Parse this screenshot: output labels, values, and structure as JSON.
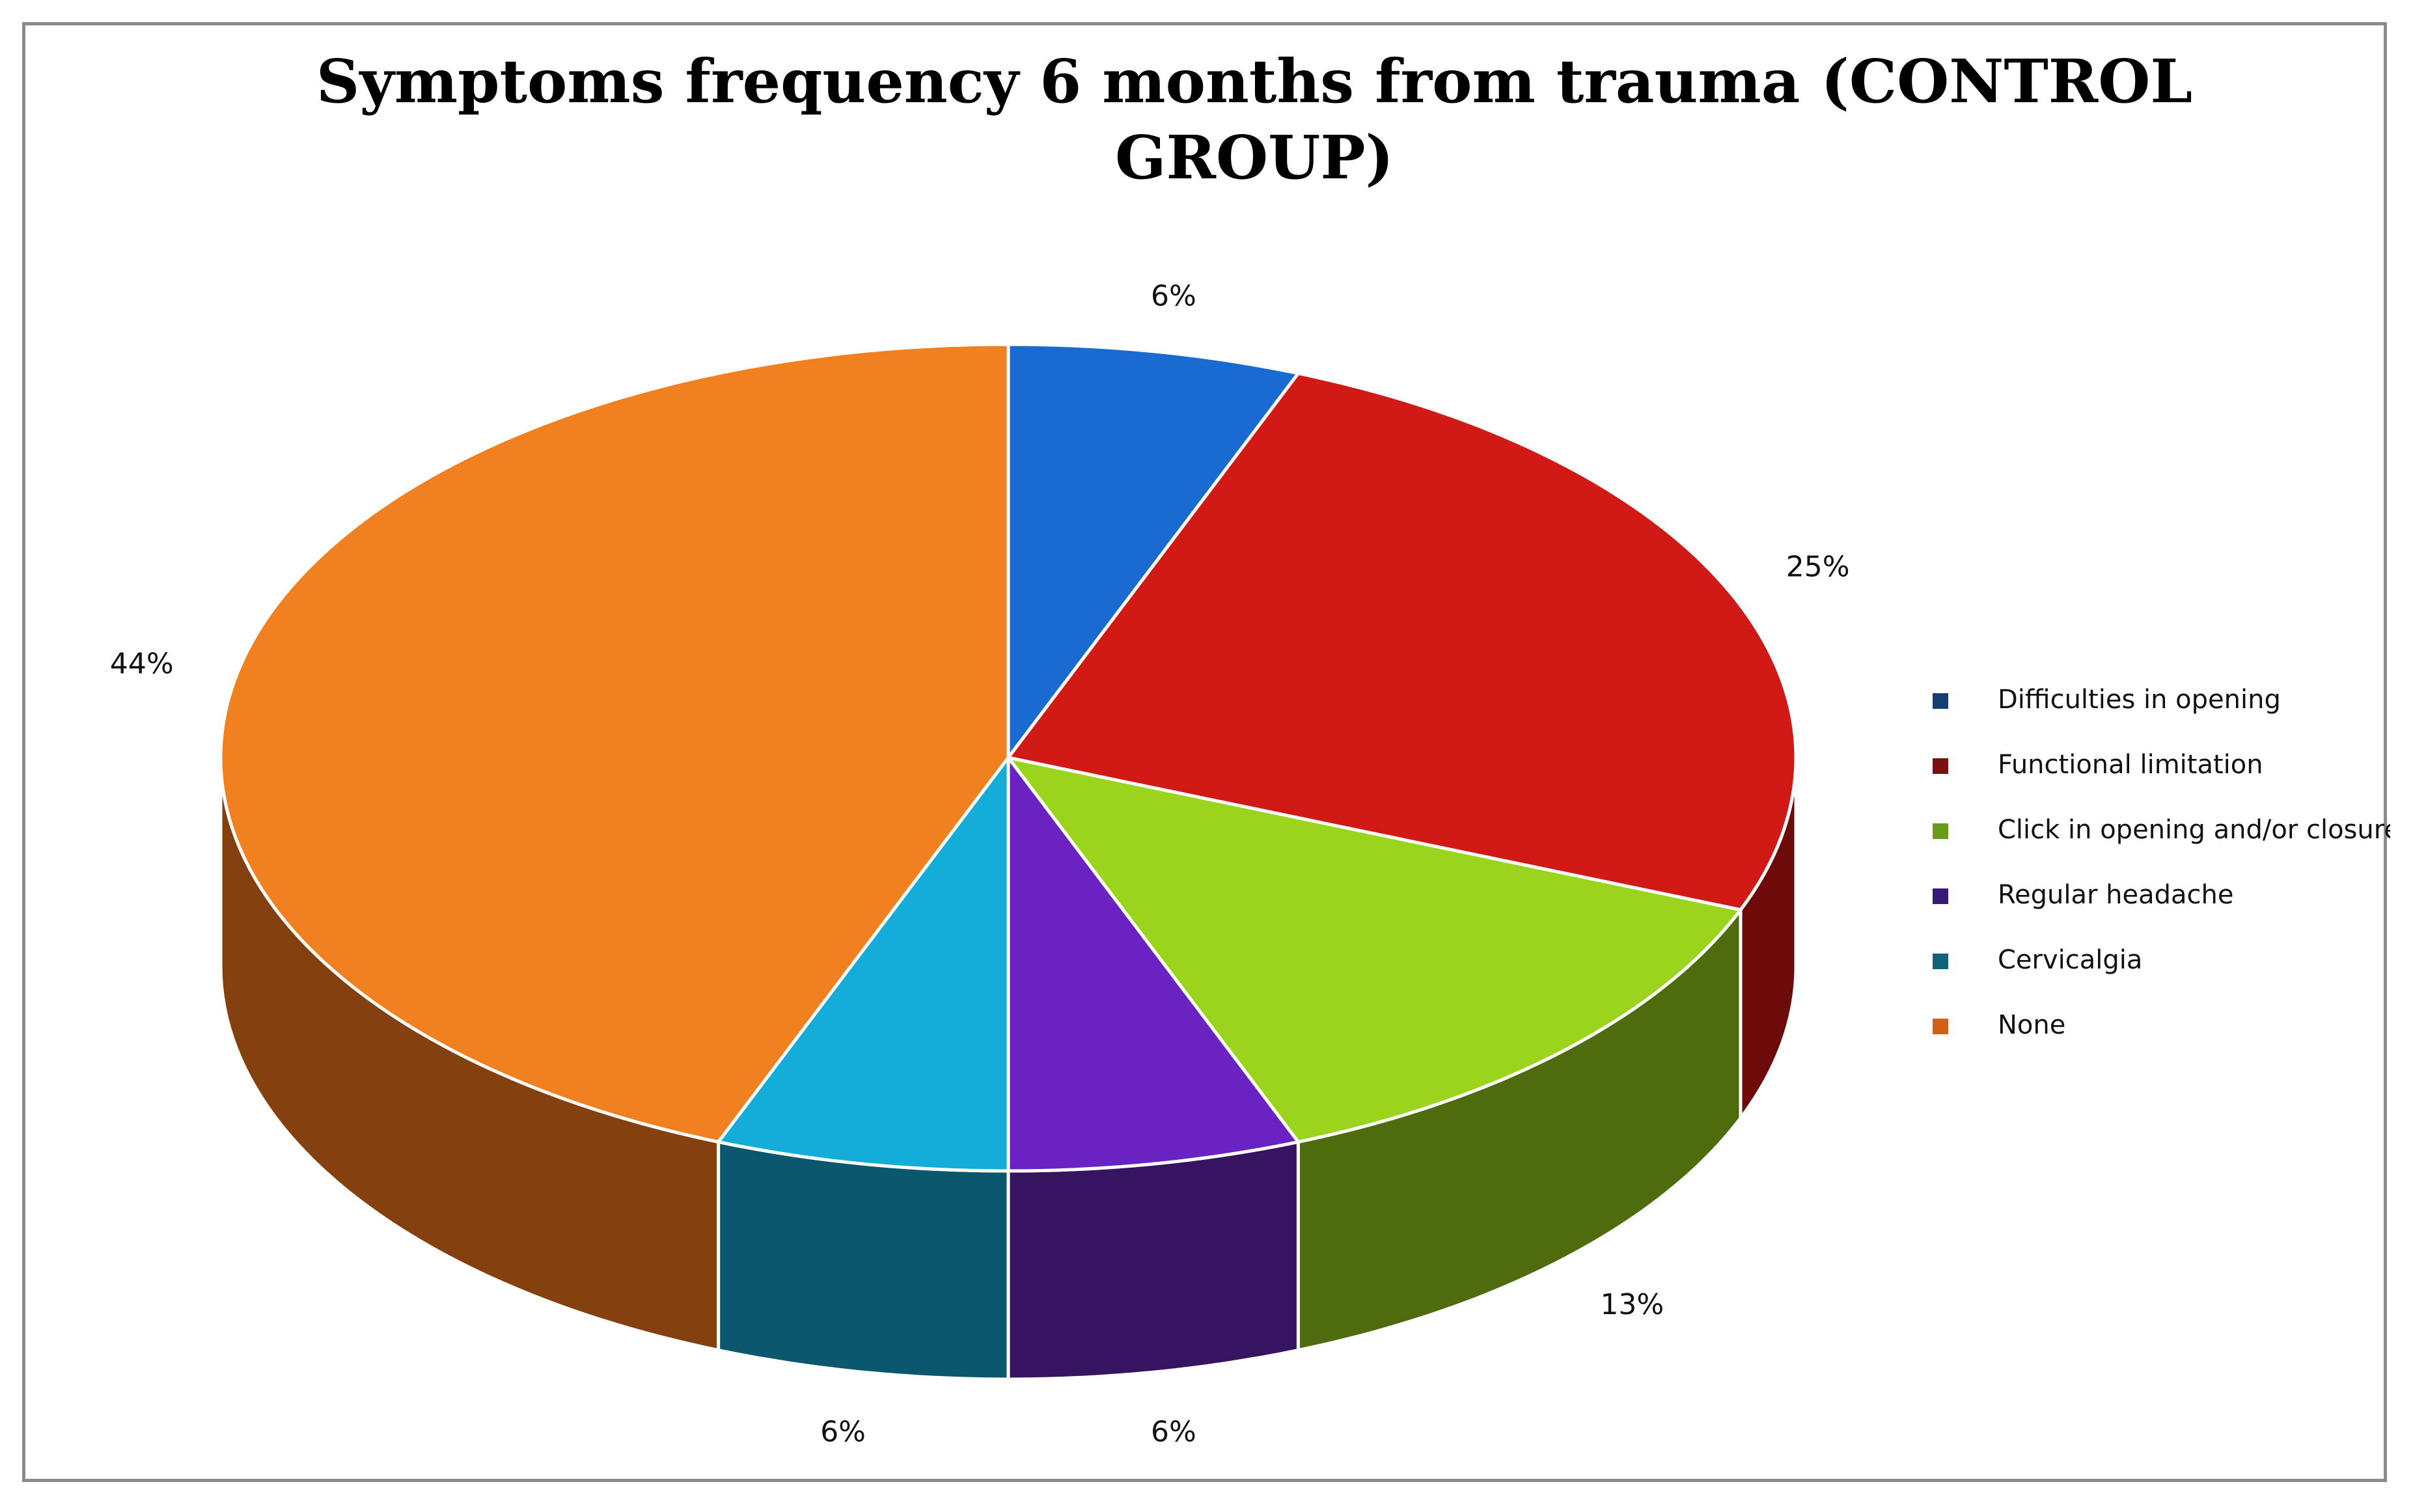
{
  "chart_data": {
    "type": "pie",
    "style": "3d",
    "title_lines": [
      "Symptoms frequency 6 months from trauma (CONTROL",
      "GROUP)"
    ],
    "slices": [
      {
        "name": "Difficulties in opening",
        "value": 6,
        "label": "6%",
        "color": "#1a6bd1",
        "side_color": "#0d3a7a"
      },
      {
        "name": "Functional limitation",
        "value": 25,
        "label": "25%",
        "color": "#d11a16",
        "side_color": "#6d0b0b"
      },
      {
        "name": "Click in opening and/or closure",
        "value": 13,
        "label": "13%",
        "color": "#9ad41c",
        "side_color": "#4e6b0e"
      },
      {
        "name": "Regular headache",
        "value": 6,
        "label": "6%",
        "color": "#6a22c2",
        "side_color": "#371461"
      },
      {
        "name": "Cervicalgia",
        "value": 6,
        "label": "6%",
        "color": "#14acd8",
        "side_color": "#0b576e"
      },
      {
        "name": "None",
        "value": 44,
        "label": "44%",
        "color": "#f08020",
        "side_color": "#84400e"
      }
    ],
    "legend_position": "right",
    "legend_colors": [
      "#153e73",
      "#7a1010",
      "#6a9a1a",
      "#3a1a78",
      "#12627e",
      "#d06018"
    ]
  }
}
